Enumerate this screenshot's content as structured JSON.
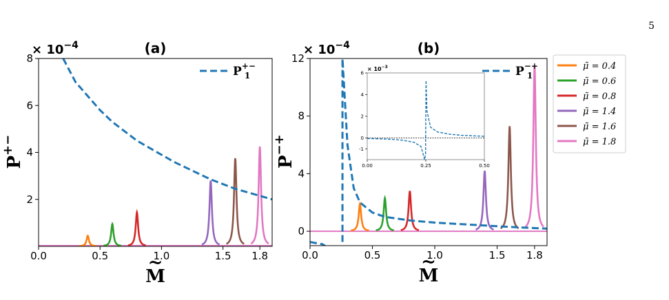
{
  "page_number": "5",
  "colors": {
    "dashed": "#1f77b4",
    "0.4": "#ff7f0e",
    "0.6": "#2ca02c",
    "0.8": "#d62728",
    "1.4": "#9467bd",
    "1.6": "#8c564b",
    "1.8": "#e377c2"
  },
  "chart_data": [
    {
      "panel": "(a)",
      "type": "line",
      "title": "(a)",
      "multiplier": "× 10",
      "multiplier_exp": "−4",
      "xlabel": "M",
      "ylabel": "P",
      "ylabel_sup": "+−",
      "xlim": [
        0.0,
        1.9
      ],
      "ylim": [
        0,
        8
      ],
      "xticks": [
        0.0,
        0.5,
        1.0,
        1.5,
        1.8
      ],
      "xtick_labels": [
        "0.0",
        "0.5",
        "1.0",
        "1.5",
        "1.8"
      ],
      "yticks": [
        2,
        4,
        6,
        8
      ],
      "ytick_labels": [
        "2",
        "4",
        "6",
        "8"
      ],
      "dashed_series": {
        "name": "P",
        "name_sup": "+−",
        "name_sub": "1",
        "x": [
          0.2,
          0.25,
          0.3,
          0.4,
          0.5,
          0.6,
          0.7,
          0.8,
          0.9,
          1.0,
          1.1,
          1.2,
          1.3,
          1.4,
          1.5,
          1.6,
          1.7,
          1.8,
          1.9
        ],
        "y": [
          8.0,
          7.5,
          7.0,
          6.4,
          5.8,
          5.3,
          4.9,
          4.5,
          4.2,
          3.9,
          3.6,
          3.35,
          3.1,
          2.85,
          2.65,
          2.45,
          2.3,
          2.15,
          2.0
        ],
        "legend_position": "top-right"
      },
      "peaks": [
        {
          "mu": 0.4,
          "x": 0.4,
          "height": 0.45
        },
        {
          "mu": 0.6,
          "x": 0.6,
          "height": 0.95
        },
        {
          "mu": 0.8,
          "x": 0.8,
          "height": 1.45
        },
        {
          "mu": 1.4,
          "x": 1.4,
          "height": 2.8
        },
        {
          "mu": 1.6,
          "x": 1.6,
          "height": 3.75
        },
        {
          "mu": 1.8,
          "x": 1.8,
          "height": 4.25
        }
      ]
    },
    {
      "panel": "(b)",
      "type": "line",
      "title": "(b)",
      "multiplier": "× 10",
      "multiplier_exp": "−4",
      "xlabel": "M",
      "ylabel": "P",
      "ylabel_sup": "−+",
      "xlim": [
        0.0,
        1.9
      ],
      "ylim": [
        -1,
        12
      ],
      "xticks": [
        0.0,
        0.5,
        1.0,
        1.5,
        1.8
      ],
      "xtick_labels": [
        "0.0",
        "0.5",
        "1.0",
        "1.5",
        "1.8"
      ],
      "yticks": [
        0,
        4,
        8,
        12
      ],
      "ytick_labels": [
        "0",
        "4",
        "8",
        "12"
      ],
      "dashed_series": {
        "name": "P",
        "name_sup": "−+",
        "name_sub": "1",
        "x": [
          0.0,
          0.1,
          0.2,
          0.24,
          0.26,
          0.3,
          0.35,
          0.4,
          0.5,
          0.6,
          0.8,
          1.0,
          1.2,
          1.4,
          1.6,
          1.8,
          1.9
        ],
        "y": [
          -0.75,
          -0.9,
          -1.5,
          -12,
          12,
          6.0,
          3.0,
          2.0,
          1.3,
          1.0,
          0.75,
          0.6,
          0.5,
          0.4,
          0.3,
          0.22,
          0.18
        ],
        "legend_position": "top-right"
      },
      "peaks": [
        {
          "mu": 0.4,
          "x": 0.4,
          "height": 1.9
        },
        {
          "mu": 0.6,
          "x": 0.6,
          "height": 2.3
        },
        {
          "mu": 0.8,
          "x": 0.8,
          "height": 2.8
        },
        {
          "mu": 1.4,
          "x": 1.4,
          "height": 4.2
        },
        {
          "mu": 1.6,
          "x": 1.6,
          "height": 7.3
        },
        {
          "mu": 1.8,
          "x": 1.8,
          "height": 11.5
        }
      ],
      "zero_line": true,
      "inset": {
        "multiplier": "× 10",
        "multiplier_exp": "−3",
        "xlim": [
          0.0,
          0.5
        ],
        "ylim": [
          -2,
          6
        ],
        "xticks": [
          0.0,
          0.25,
          0.5
        ],
        "xtick_labels": [
          "0.00",
          "0.25",
          "0.50"
        ],
        "yticks": [
          -1,
          0,
          2,
          4,
          6
        ],
        "ytick_labels": [
          "-1",
          "0",
          "2",
          "4",
          "6"
        ],
        "x": [
          0.0,
          0.05,
          0.1,
          0.15,
          0.2,
          0.23,
          0.245,
          0.249,
          0.251,
          0.255,
          0.27,
          0.3,
          0.35,
          0.4,
          0.45,
          0.5
        ],
        "y": [
          -0.05,
          -0.08,
          -0.12,
          -0.2,
          -0.4,
          -0.8,
          -2.0,
          -1.5,
          5.3,
          2.5,
          1.0,
          0.55,
          0.35,
          0.25,
          0.2,
          0.15
        ]
      }
    }
  ],
  "legend": {
    "symbol": "μ̃",
    "entries": [
      {
        "mu": "0.4",
        "label": "= 0.4"
      },
      {
        "mu": "0.6",
        "label": "= 0.6"
      },
      {
        "mu": "0.8",
        "label": "= 0.8"
      },
      {
        "mu": "1.4",
        "label": "= 1.4"
      },
      {
        "mu": "1.6",
        "label": "= 1.6"
      },
      {
        "mu": "1.8",
        "label": "= 1.8"
      }
    ]
  }
}
